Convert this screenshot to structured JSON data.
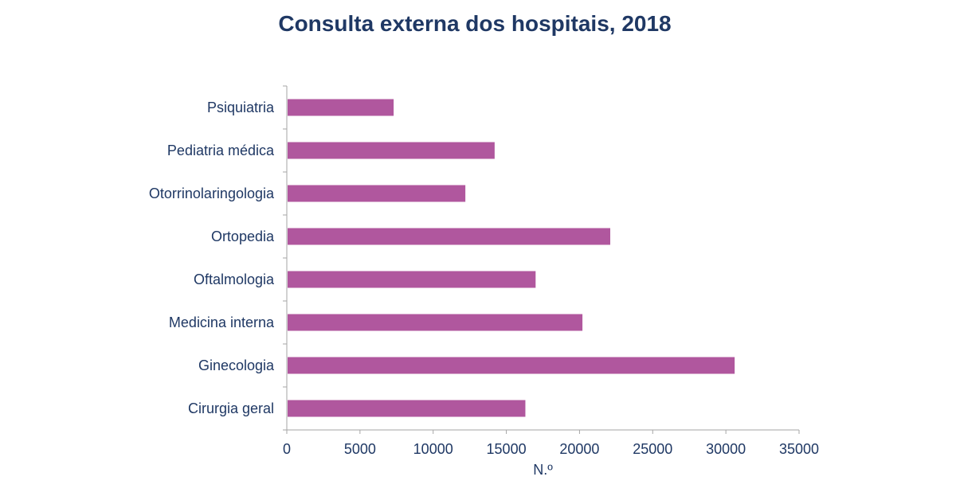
{
  "colors": {
    "bar": "#b0579e",
    "text": "#1f3864",
    "axis": "#a6a6a6"
  },
  "chart_data": {
    "type": "bar",
    "orientation": "horizontal",
    "title": "Consulta externa dos hospitais, 2018",
    "xlabel": "N.º",
    "ylabel": "",
    "categories": [
      "Psiquiatria",
      "Pediatria médica",
      "Otorrinolaringologia",
      "Ortopedia",
      "Oftalmologia",
      "Medicina interna",
      "Ginecologia",
      "Cirurgia geral"
    ],
    "values": [
      7300,
      14200,
      12200,
      22100,
      17000,
      20200,
      30600,
      16300
    ],
    "xlim": [
      0,
      35000
    ],
    "xticks": [
      "0",
      "5000",
      "10000",
      "15000",
      "20000",
      "25000",
      "30000",
      "35000"
    ],
    "grid": false,
    "legend": "none"
  }
}
